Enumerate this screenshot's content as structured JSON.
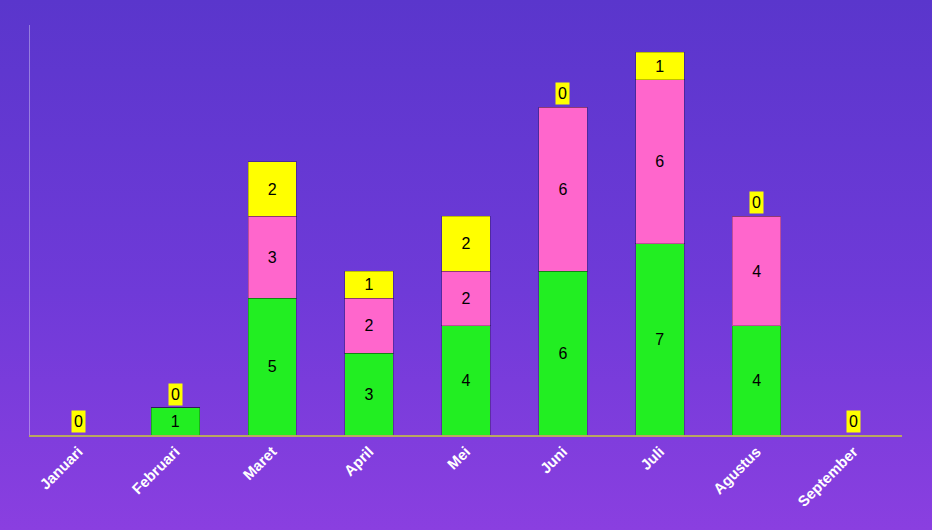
{
  "chart_data": {
    "type": "bar",
    "categories": [
      "Januari",
      "Februari",
      "Maret",
      "April",
      "Mei",
      "Juni",
      "Juli",
      "Agustus",
      "September"
    ],
    "series": [
      {
        "color": "#22ee22",
        "values": [
          0,
          1,
          5,
          3,
          4,
          6,
          7,
          4,
          0
        ]
      },
      {
        "color": "#ff66cc",
        "values": [
          0,
          0,
          3,
          2,
          2,
          6,
          6,
          4,
          0
        ]
      },
      {
        "color": "#ffff00",
        "values": [
          0,
          0,
          2,
          1,
          2,
          0,
          1,
          0,
          0
        ]
      }
    ],
    "stacked": true,
    "data_labels": true,
    "tick_labels": "x",
    "grid": false,
    "ylim": [
      0,
      15
    ]
  }
}
